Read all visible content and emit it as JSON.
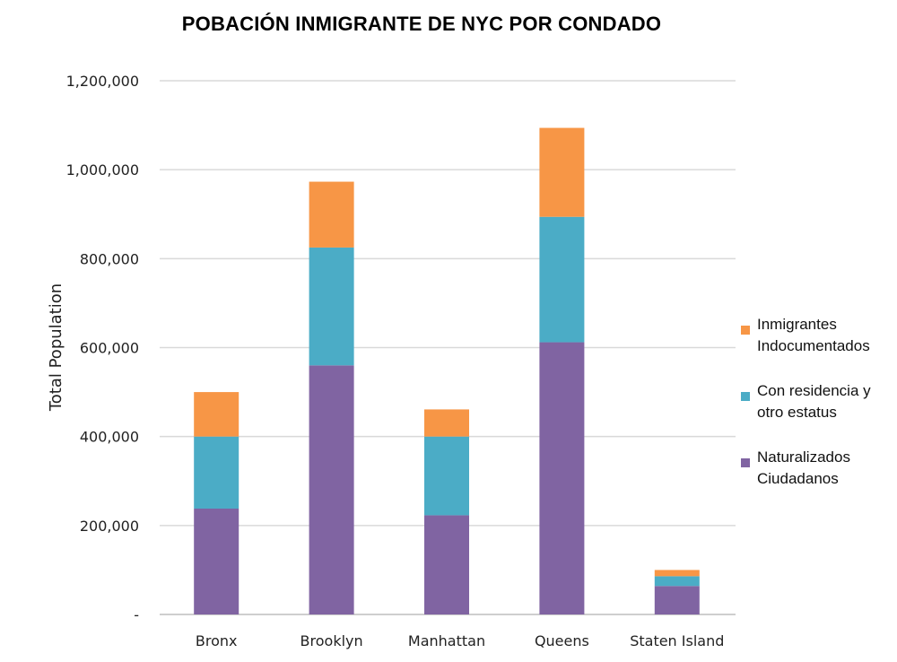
{
  "chart_data": {
    "type": "bar",
    "stacked": true,
    "title": "POBACIÓN INMIGRANTE DE NYC POR CONDADO",
    "xlabel": "",
    "ylabel": "Total Population",
    "ylim": [
      0,
      1200000
    ],
    "yticks": [
      0,
      200000,
      400000,
      600000,
      800000,
      1000000,
      1200000
    ],
    "ytick_labels": [
      "-",
      "200,000",
      "400,000",
      "600,000",
      "800,000",
      "1,000,000",
      "1,200,000"
    ],
    "grid": true,
    "legend_position": "right",
    "categories": [
      "Bronx",
      "Brooklyn",
      "Manhattan",
      "Queens",
      "Staten Island"
    ],
    "series": [
      {
        "name": "Naturalizados Ciudadanos",
        "color": "#8064a2",
        "values": [
          238000,
          560000,
          223000,
          612000,
          64000
        ]
      },
      {
        "name": "Con residencia y otro estatus",
        "color": "#4bacc6",
        "values": [
          162000,
          265000,
          177000,
          282000,
          22000
        ]
      },
      {
        "name": "Inmigrantes Indocumentados",
        "color": "#f79646",
        "values": [
          100000,
          148000,
          61000,
          200000,
          14000
        ]
      }
    ]
  }
}
